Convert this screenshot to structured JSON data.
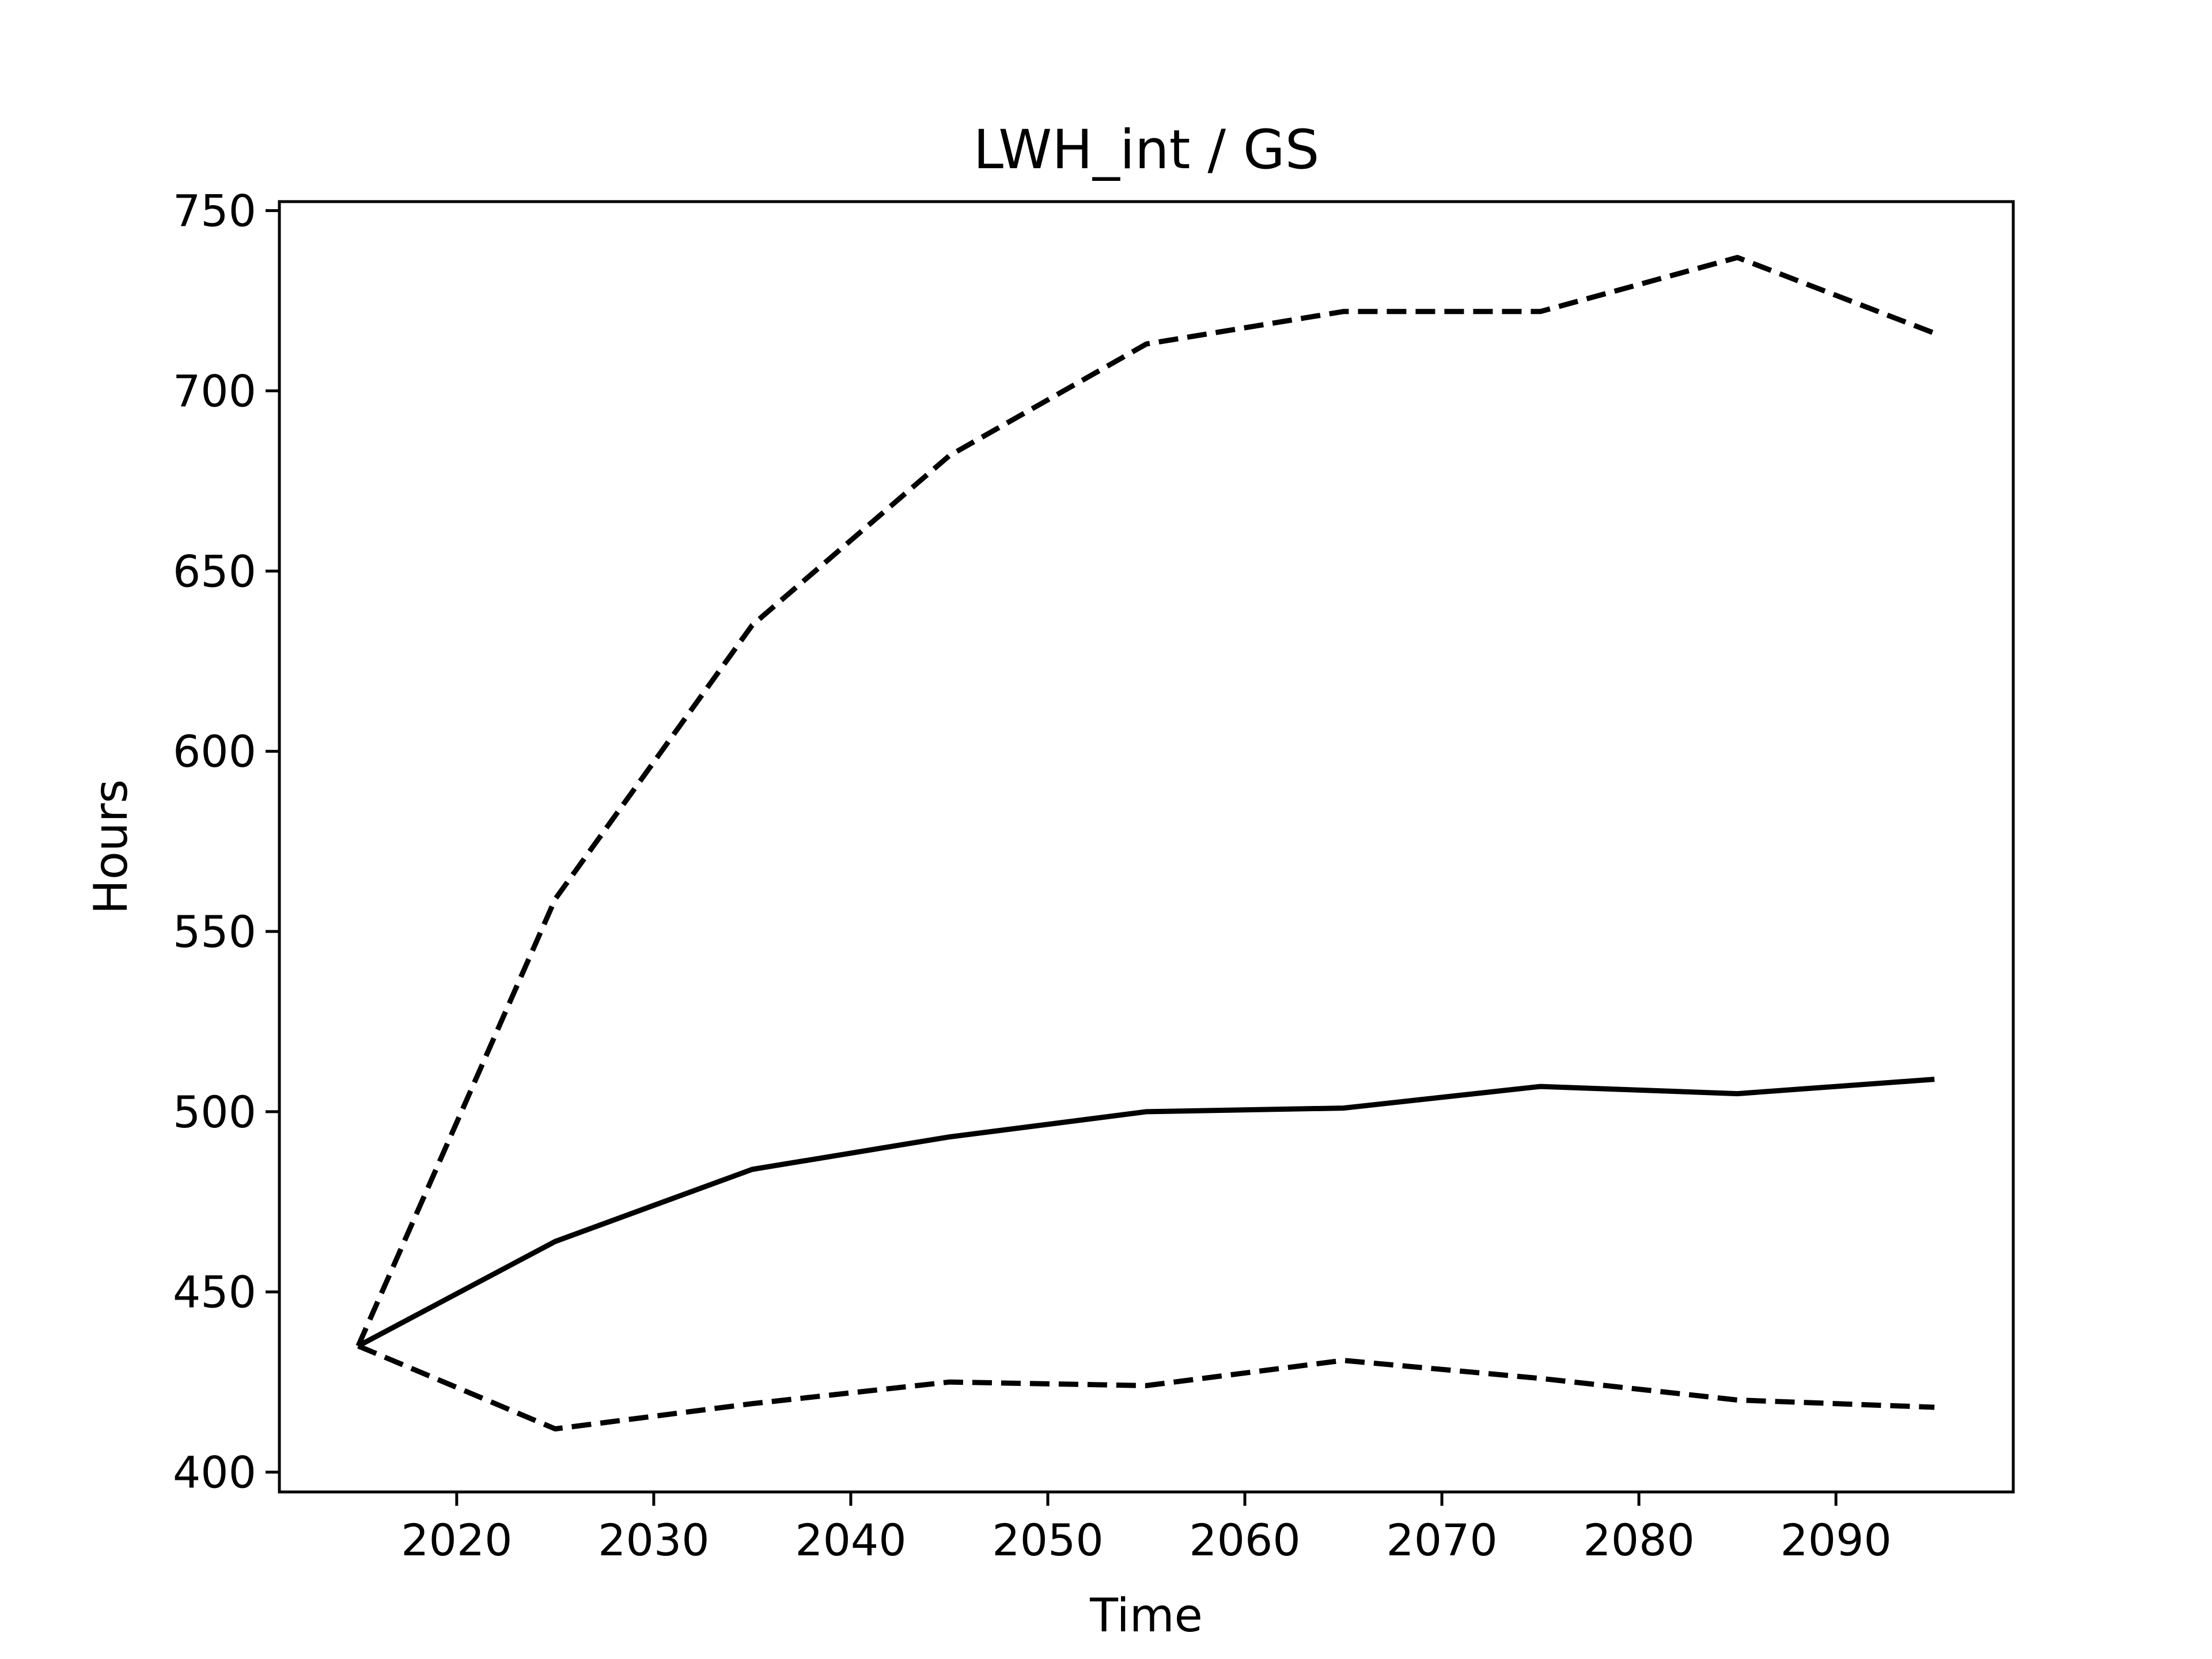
{
  "chart_data": {
    "type": "line",
    "title": "LWH_int / GS",
    "xlabel": "Time",
    "ylabel": "Hours",
    "xlim": [
      2011,
      2099
    ],
    "ylim": [
      394.5,
      752.5
    ],
    "xticks": [
      2020,
      2030,
      2040,
      2050,
      2060,
      2070,
      2080,
      2090
    ],
    "yticks": [
      400,
      450,
      500,
      550,
      600,
      650,
      700,
      750
    ],
    "grid": false,
    "legend": false,
    "x": [
      2015,
      2025,
      2035,
      2045,
      2055,
      2065,
      2075,
      2085,
      2095
    ],
    "series": [
      {
        "style": "dashed",
        "color": "#000000",
        "values": [
          435,
          559,
          635,
          682,
          713,
          722,
          722,
          737,
          716
        ]
      },
      {
        "style": "solid",
        "color": "#000000",
        "values": [
          435,
          464,
          484,
          493,
          500,
          501,
          507,
          505,
          509
        ]
      },
      {
        "style": "dashed",
        "color": "#000000",
        "values": [
          435,
          412,
          419,
          425,
          424,
          431,
          426,
          420,
          418
        ]
      }
    ]
  }
}
